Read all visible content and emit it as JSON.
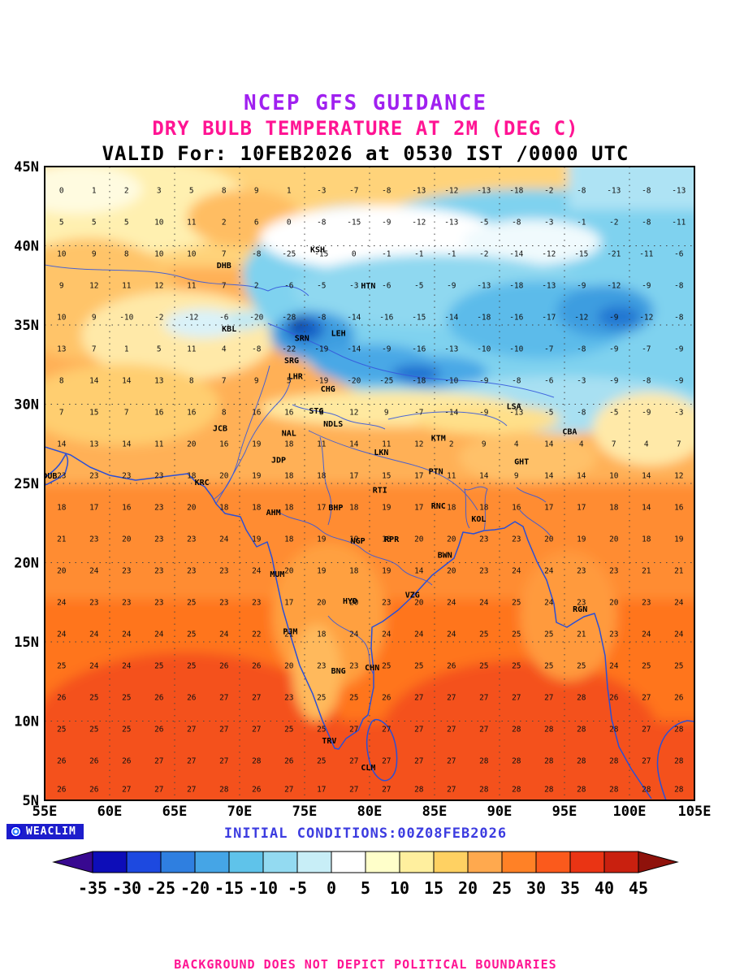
{
  "header": {
    "title": "NCEP GFS GUIDANCE",
    "subtitle": "DRY BULB TEMPERATURE AT 2M (DEG C)",
    "valid": "VALID For: 10FEB2026 at 0530 IST /0000 UTC"
  },
  "colors": {
    "title": "#a020f0",
    "subtitle": "#ff1493",
    "valid": "#000000",
    "initial": "#3c3ce0",
    "disclaimer": "#ff1493",
    "coastline": "#2a4fd7"
  },
  "map": {
    "lon_min": 55,
    "lon_max": 105,
    "lat_min": 5,
    "lat_max": 45,
    "lat_ticks": [
      {
        "label": "45N",
        "value": 45
      },
      {
        "label": "40N",
        "value": 40
      },
      {
        "label": "35N",
        "value": 35
      },
      {
        "label": "30N",
        "value": 30
      },
      {
        "label": "25N",
        "value": 25
      },
      {
        "label": "20N",
        "value": 20
      },
      {
        "label": "15N",
        "value": 15
      },
      {
        "label": "10N",
        "value": 10
      },
      {
        "label": "5N",
        "value": 5
      }
    ],
    "lon_ticks": [
      {
        "label": "55E",
        "value": 55
      },
      {
        "label": "60E",
        "value": 60
      },
      {
        "label": "65E",
        "value": 65
      },
      {
        "label": "70E",
        "value": 70
      },
      {
        "label": "75E",
        "value": 75
      },
      {
        "label": "80E",
        "value": 80
      },
      {
        "label": "85E",
        "value": 85
      },
      {
        "label": "90E",
        "value": 90
      },
      {
        "label": "95E",
        "value": 95
      },
      {
        "label": "100E",
        "value": 100
      },
      {
        "label": "105E",
        "value": 105
      }
    ],
    "cities": [
      {
        "code": "KSH",
        "lon": 76.0,
        "lat": 39.6
      },
      {
        "code": "DHB",
        "lon": 68.8,
        "lat": 38.6
      },
      {
        "code": "HTN",
        "lon": 79.9,
        "lat": 37.3
      },
      {
        "code": "KBL",
        "lon": 69.2,
        "lat": 34.6
      },
      {
        "code": "LEH",
        "lon": 77.6,
        "lat": 34.3
      },
      {
        "code": "SRN",
        "lon": 74.8,
        "lat": 34.0
      },
      {
        "code": "SRG",
        "lon": 74.0,
        "lat": 32.6
      },
      {
        "code": "LHR",
        "lon": 74.3,
        "lat": 31.6
      },
      {
        "code": "CHG",
        "lon": 76.8,
        "lat": 30.8
      },
      {
        "code": "STG",
        "lon": 75.9,
        "lat": 29.4
      },
      {
        "code": "JCB",
        "lon": 68.5,
        "lat": 28.3
      },
      {
        "code": "NAL",
        "lon": 73.8,
        "lat": 28.0
      },
      {
        "code": "NDLS",
        "lon": 77.2,
        "lat": 28.6
      },
      {
        "code": "JDP",
        "lon": 73.0,
        "lat": 26.3
      },
      {
        "code": "LKN",
        "lon": 80.9,
        "lat": 26.8
      },
      {
        "code": "KTM",
        "lon": 85.3,
        "lat": 27.7
      },
      {
        "code": "LSA",
        "lon": 91.1,
        "lat": 29.7
      },
      {
        "code": "CBA",
        "lon": 95.4,
        "lat": 28.1
      },
      {
        "code": "GHT",
        "lon": 91.7,
        "lat": 26.2
      },
      {
        "code": "PTN",
        "lon": 85.1,
        "lat": 25.6
      },
      {
        "code": "DUB",
        "lon": 55.4,
        "lat": 25.3
      },
      {
        "code": "KRC",
        "lon": 67.1,
        "lat": 24.9
      },
      {
        "code": "RTI",
        "lon": 80.8,
        "lat": 24.4
      },
      {
        "code": "RNC",
        "lon": 85.3,
        "lat": 23.4
      },
      {
        "code": "AHM",
        "lon": 72.6,
        "lat": 23.0
      },
      {
        "code": "BHP",
        "lon": 77.4,
        "lat": 23.3
      },
      {
        "code": "KOL",
        "lon": 88.4,
        "lat": 22.6
      },
      {
        "code": "NGP",
        "lon": 79.1,
        "lat": 21.2
      },
      {
        "code": "RPR",
        "lon": 81.7,
        "lat": 21.3
      },
      {
        "code": "BWN",
        "lon": 85.8,
        "lat": 20.3
      },
      {
        "code": "MUM",
        "lon": 72.9,
        "lat": 19.1
      },
      {
        "code": "HYD",
        "lon": 78.5,
        "lat": 17.4
      },
      {
        "code": "VZG",
        "lon": 83.3,
        "lat": 17.8
      },
      {
        "code": "RGN",
        "lon": 96.2,
        "lat": 16.9
      },
      {
        "code": "PJM",
        "lon": 73.9,
        "lat": 15.5
      },
      {
        "code": "CHN",
        "lon": 80.2,
        "lat": 13.2
      },
      {
        "code": "BNG",
        "lon": 77.6,
        "lat": 13.0
      },
      {
        "code": "TRV",
        "lon": 76.9,
        "lat": 8.6
      },
      {
        "code": "CLM",
        "lon": 79.9,
        "lat": 6.9
      }
    ],
    "temp_grid": {
      "lons": [
        56.3,
        58.8,
        61.3,
        63.8,
        66.3,
        68.8,
        71.3,
        73.8,
        76.3,
        78.8,
        81.3,
        83.8,
        86.3,
        88.8,
        91.3,
        93.8,
        96.3,
        98.8,
        101.3,
        103.8
      ],
      "lats": [
        43.5,
        41.5,
        39.5,
        37.5,
        35.5,
        33.5,
        31.5,
        29.5,
        27.5,
        25.5,
        23.5,
        21.5,
        19.5,
        17.5,
        15.5,
        13.5,
        11.5,
        9.5,
        7.5,
        5.7
      ],
      "values": [
        [
          0,
          1,
          2,
          3,
          5,
          8,
          9,
          1,
          -3,
          -7,
          -8,
          -13,
          -12,
          -13,
          -18,
          -2,
          -8,
          -13,
          -8,
          -13
        ],
        [
          5,
          5,
          5,
          10,
          11,
          2,
          6,
          0,
          -8,
          -15,
          -9,
          -12,
          -13,
          -5,
          -8,
          -3,
          -1,
          -2,
          -8,
          -11
        ],
        [
          10,
          9,
          8,
          10,
          10,
          7,
          -8,
          -25,
          -15,
          0,
          -1,
          -1,
          -1,
          -2,
          -14,
          -12,
          -15,
          -21,
          -11,
          -6
        ],
        [
          9,
          12,
          11,
          12,
          11,
          7,
          2,
          -6,
          -5,
          -3,
          -6,
          -5,
          -9,
          -13,
          -18,
          -13,
          -9,
          -12,
          -9,
          -8
        ],
        [
          10,
          9,
          -10,
          -2,
          -12,
          -6,
          -20,
          -28,
          -8,
          -14,
          -16,
          -15,
          -14,
          -18,
          -16,
          -17,
          -12,
          -9,
          -12,
          -8
        ],
        [
          13,
          7,
          1,
          5,
          11,
          4,
          -8,
          -22,
          -19,
          -14,
          -9,
          -16,
          -13,
          -10,
          -10,
          -7,
          -8,
          -9,
          -7,
          -9
        ],
        [
          8,
          14,
          14,
          13,
          8,
          7,
          9,
          5,
          -19,
          -20,
          -25,
          -18,
          -10,
          -9,
          -8,
          -6,
          -3,
          -9,
          -8,
          -9
        ],
        [
          7,
          15,
          7,
          16,
          16,
          8,
          16,
          16,
          8,
          12,
          9,
          -7,
          -14,
          -9,
          -13,
          -5,
          -8,
          -5,
          -9,
          -3
        ],
        [
          14,
          13,
          14,
          11,
          20,
          16,
          19,
          18,
          11,
          14,
          11,
          12,
          2,
          9,
          4,
          14,
          4,
          7,
          4,
          7
        ],
        [
          23,
          23,
          23,
          23,
          18,
          20,
          19,
          18,
          18,
          17,
          15,
          17,
          11,
          14,
          9,
          14,
          14,
          10,
          14,
          12
        ],
        [
          18,
          17,
          16,
          23,
          20,
          18,
          18,
          18,
          17,
          18,
          19,
          17,
          18,
          18,
          16,
          17,
          17,
          18,
          14,
          16
        ],
        [
          21,
          23,
          20,
          23,
          23,
          24,
          19,
          18,
          19,
          19,
          18,
          20,
          20,
          23,
          23,
          20,
          19,
          20,
          18,
          19
        ],
        [
          20,
          24,
          23,
          23,
          23,
          23,
          24,
          20,
          19,
          18,
          19,
          14,
          20,
          23,
          24,
          24,
          23,
          23,
          21,
          21
        ],
        [
          24,
          23,
          23,
          23,
          25,
          23,
          23,
          17,
          20,
          20,
          23,
          20,
          24,
          24,
          25,
          24,
          23,
          20,
          23,
          24
        ],
        [
          24,
          24,
          24,
          24,
          25,
          24,
          22,
          21,
          18,
          24,
          24,
          24,
          24,
          25,
          25,
          25,
          21,
          23,
          24,
          24
        ],
        [
          25,
          24,
          24,
          25,
          25,
          26,
          26,
          20,
          23,
          23,
          25,
          25,
          26,
          25,
          25,
          25,
          25,
          24,
          25,
          25
        ],
        [
          26,
          25,
          25,
          26,
          26,
          27,
          27,
          23,
          25,
          25,
          26,
          27,
          27,
          27,
          27,
          27,
          28,
          26,
          27,
          26
        ],
        [
          25,
          25,
          25,
          26,
          27,
          27,
          27,
          25,
          25,
          27,
          27,
          27,
          27,
          27,
          28,
          28,
          28,
          28,
          27,
          28
        ],
        [
          26,
          26,
          26,
          27,
          27,
          27,
          28,
          26,
          25,
          27,
          27,
          27,
          27,
          28,
          28,
          28,
          28,
          28,
          27,
          28
        ],
        [
          26,
          26,
          27,
          27,
          27,
          28,
          26,
          27,
          17,
          27,
          27,
          28,
          27,
          28,
          28,
          28,
          28,
          28,
          28,
          28
        ]
      ]
    }
  },
  "footer": {
    "weaclim": "WEACLIM",
    "initial": "INITIAL CONDITIONS:00Z08FEB2026",
    "disclaimer": "BACKGROUND DOES NOT DEPICT POLITICAL BOUNDARIES"
  },
  "colorbar": {
    "tick_labels": [
      "-35",
      "-30",
      "-25",
      "-20",
      "-15",
      "-10",
      "-5",
      "0",
      "5",
      "10",
      "15",
      "20",
      "25",
      "30",
      "35",
      "40",
      "45"
    ],
    "segment_colors": [
      "#0d0db8",
      "#1d49e0",
      "#2f7fe0",
      "#45a5e6",
      "#5fc3ea",
      "#93daf1",
      "#c8eef7",
      "#ffffff",
      "#ffffca",
      "#ffef9e",
      "#ffd162",
      "#ffa94e",
      "#ff8126",
      "#fb5a1c",
      "#ea3414",
      "#c9200f"
    ],
    "left_arrow_color": "#380990",
    "right_arrow_color": "#8f120b"
  }
}
